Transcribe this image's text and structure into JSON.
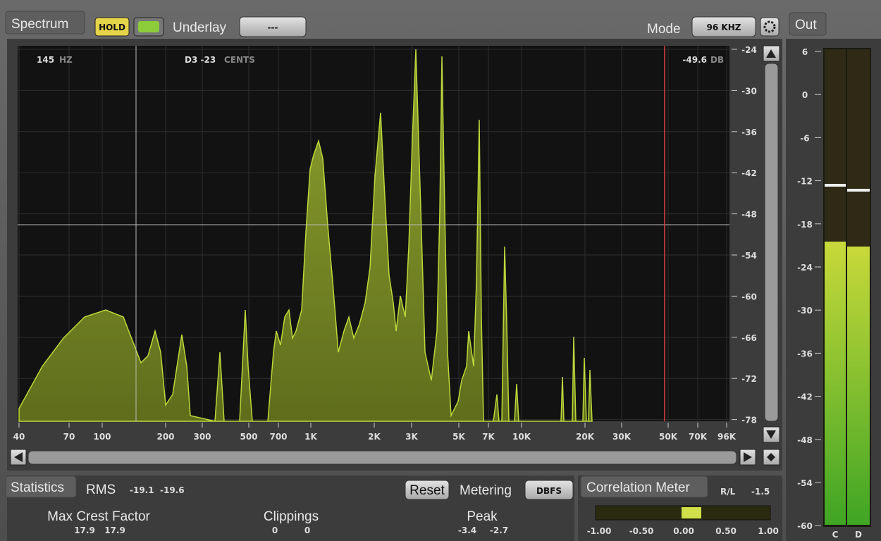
{
  "toolbar": {
    "tab": "Spectrum",
    "hold": "HOLD",
    "underlay_label": "Underlay",
    "underlay_value": "---",
    "mode_label": "Mode",
    "mode_value": "96 KHZ"
  },
  "spectrum": {
    "readout": {
      "freq": "145",
      "freq_unit": "HZ",
      "note": "D3 -23",
      "note_unit": "CENTS",
      "level": "-49.6",
      "level_unit": "DB"
    },
    "freq_labels": [
      "40",
      "70",
      "100",
      "200",
      "300",
      "500",
      "700",
      "1K",
      "2K",
      "3K",
      "5K",
      "7K",
      "10K",
      "20K",
      "30K",
      "50K",
      "70K",
      "96K"
    ],
    "db_labels": [
      "-24",
      "-30",
      "-36",
      "-42",
      "-48",
      "-54",
      "-60",
      "-66",
      "-72",
      "-78"
    ]
  },
  "out": {
    "tab": "Out",
    "scale": [
      "6",
      "0",
      "-6",
      "-12",
      "-18",
      "-24",
      "-30",
      "-36",
      "-42",
      "-48",
      "-54",
      "-60"
    ],
    "channels": [
      "C",
      "D"
    ]
  },
  "statistics": {
    "tab": "Statistics",
    "rms_label": "RMS",
    "rms": [
      "-19.1",
      "-19.6"
    ],
    "reset": "Reset",
    "metering_label": "Metering",
    "metering_value": "DBFS",
    "max_crest_label": "Max Crest Factor",
    "max_crest": [
      "17.9",
      "17.9"
    ],
    "clippings_label": "Clippings",
    "clippings": [
      "0",
      "0"
    ],
    "peak_label": "Peak",
    "peak": [
      "-3.4",
      "-2.7"
    ]
  },
  "correlation": {
    "tab": "Correlation Meter",
    "mode": "R/L",
    "value": "-1.5",
    "scale": [
      "-1.00",
      "-0.50",
      "0.00",
      "0.50",
      "1.00"
    ]
  }
}
